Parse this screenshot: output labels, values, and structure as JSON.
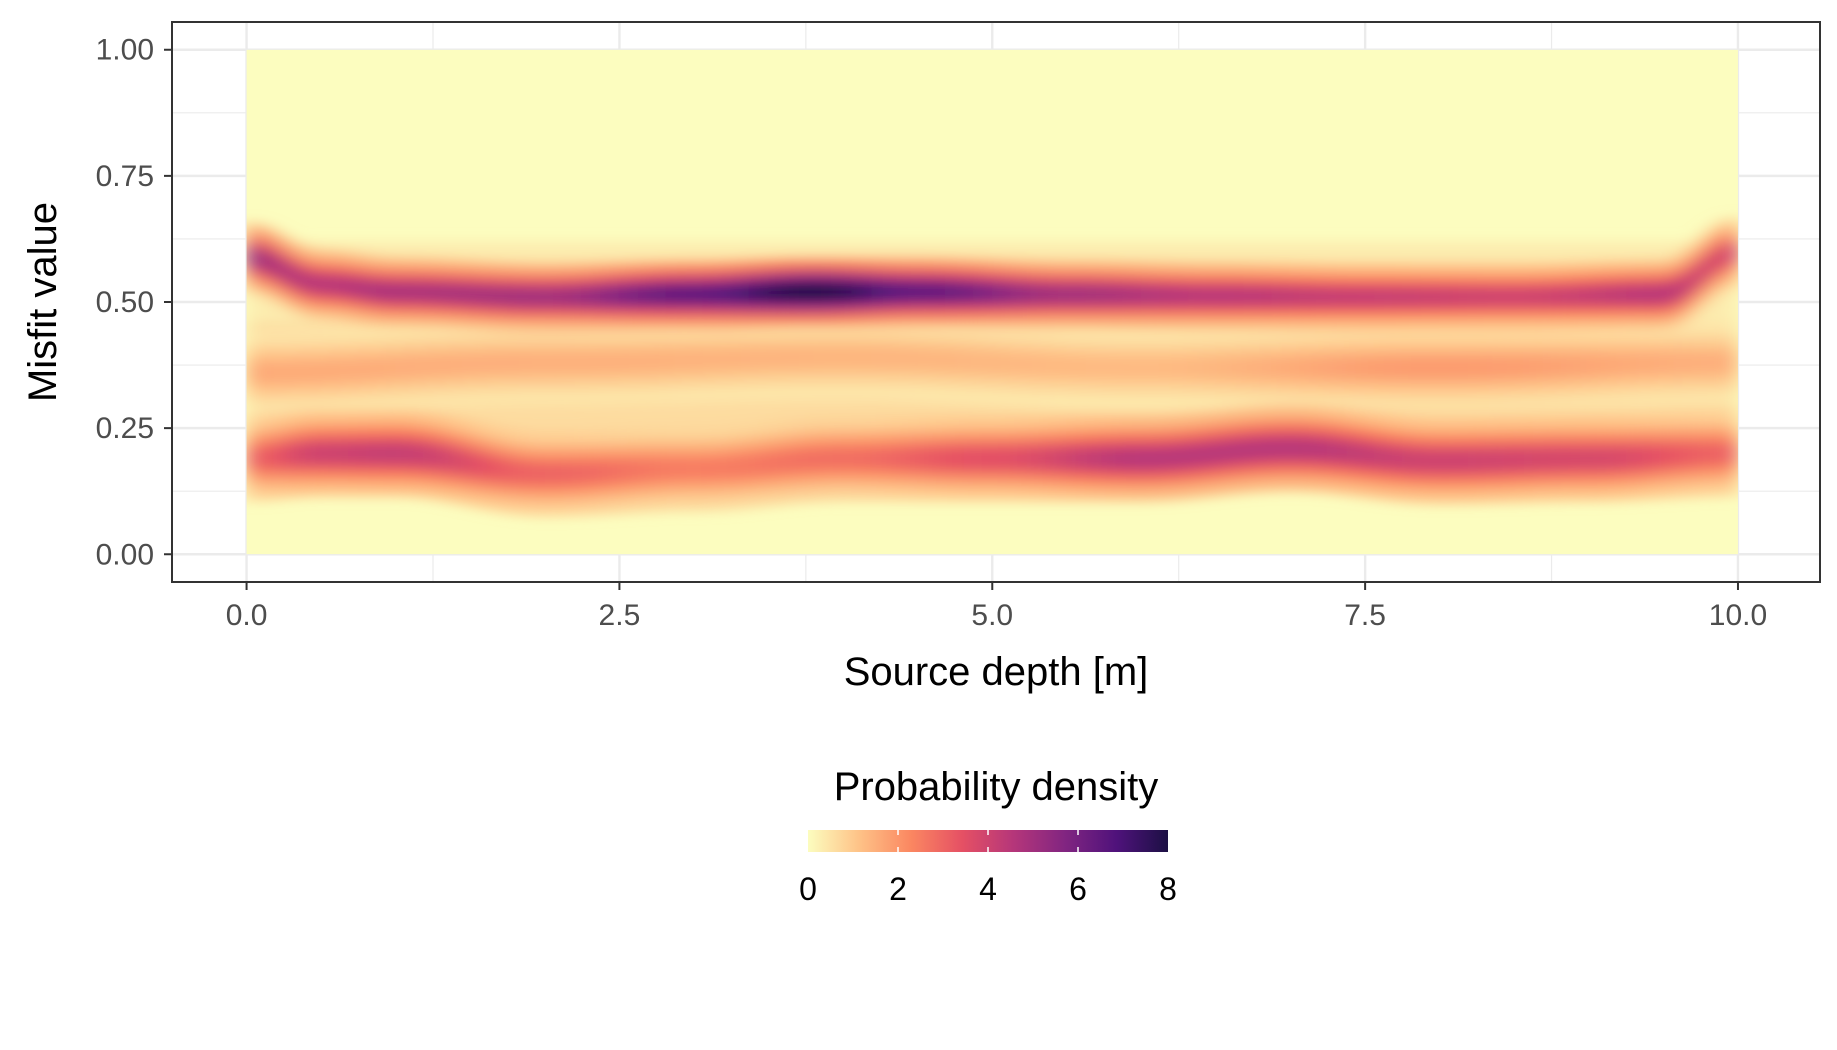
{
  "chart_data": {
    "type": "heatmap",
    "title": "",
    "xlabel": "Source depth [m]",
    "ylabel": "Misfit value",
    "xlim": [
      -0.5,
      10.55
    ],
    "ylim": [
      -0.055,
      1.055
    ],
    "data_xlim": [
      0.0,
      10.0
    ],
    "data_ylim": [
      0.0,
      1.0
    ],
    "x_ticks": [
      0.0,
      2.5,
      5.0,
      7.5,
      10.0
    ],
    "x_tick_labels": [
      "0.0",
      "2.5",
      "5.0",
      "7.5",
      "10.0"
    ],
    "y_ticks": [
      0.0,
      0.25,
      0.5,
      0.75,
      1.0
    ],
    "y_tick_labels": [
      "0.00",
      "0.25",
      "0.50",
      "0.75",
      "1.00"
    ],
    "grid": true,
    "colorscale": "magma-reversed",
    "colorscale_stops": [
      "#fcfdbf",
      "#fec287",
      "#fb8761",
      "#e55064",
      "#b5367a",
      "#812581",
      "#4f127b",
      "#1c1044"
    ],
    "density_ridges": [
      {
        "name": "upper band",
        "x": [
          0.0,
          0.5,
          1.0,
          2.0,
          3.0,
          3.8,
          4.5,
          5.5,
          6.5,
          7.5,
          8.5,
          9.5,
          10.0
        ],
        "y": [
          0.59,
          0.535,
          0.52,
          0.51,
          0.515,
          0.52,
          0.52,
          0.515,
          0.512,
          0.51,
          0.51,
          0.515,
          0.6
        ],
        "peak_density": [
          5.0,
          4.5,
          4.8,
          5.0,
          6.5,
          8.0,
          6.5,
          5.0,
          4.5,
          4.2,
          4.0,
          4.5,
          3.8
        ]
      },
      {
        "name": "lower band",
        "x": [
          0.0,
          0.5,
          1.0,
          2.0,
          3.0,
          4.0,
          5.0,
          6.0,
          7.0,
          8.0,
          9.0,
          10.0
        ],
        "y": [
          0.19,
          0.2,
          0.2,
          0.16,
          0.17,
          0.19,
          0.19,
          0.19,
          0.21,
          0.185,
          0.19,
          0.2
        ],
        "peak_density": [
          3.0,
          4.0,
          4.2,
          3.0,
          2.5,
          2.8,
          3.5,
          4.5,
          4.5,
          4.0,
          3.8,
          3.0
        ]
      }
    ],
    "legend": {
      "title": "Probability density",
      "position": "bottom",
      "ticks": [
        0,
        2,
        4,
        6,
        8
      ],
      "tick_labels": [
        "0",
        "2",
        "4",
        "6",
        "8"
      ],
      "range": [
        0,
        8
      ]
    }
  }
}
